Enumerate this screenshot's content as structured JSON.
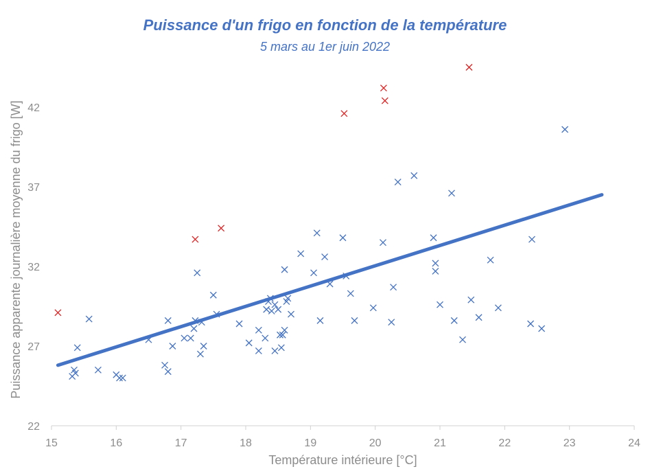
{
  "colors": {
    "accent": "#4472C4",
    "outlier": "#E02020",
    "axis_text": "#8C8C8C",
    "axis_line": "#D0D0D0",
    "trend": "#4472C4"
  },
  "chart_data": {
    "type": "scatter",
    "title": "Puissance d'un frigo en fonction de la température",
    "subtitle": "5 mars au 1er juin 2022",
    "xlabel": "Température intérieure [°C]",
    "ylabel": "Puissance apparente journalière moyenne du frigo [W]",
    "xlim": [
      15,
      24
    ],
    "ylim": [
      22,
      45
    ],
    "xticks": [
      "15",
      "16",
      "17",
      "18",
      "19",
      "20",
      "21",
      "22",
      "23",
      "24"
    ],
    "yticks": [
      "22",
      "27",
      "32",
      "37",
      "42"
    ],
    "grid": false,
    "trendline": {
      "x": [
        15.1,
        23.5
      ],
      "y": [
        25.8,
        36.5
      ]
    },
    "series": [
      {
        "marker": "x",
        "color": "#4472C4",
        "points": [
          [
            15.32,
            25.1
          ],
          [
            15.35,
            25.5
          ],
          [
            15.37,
            25.3
          ],
          [
            15.4,
            26.9
          ],
          [
            15.58,
            28.7
          ],
          [
            15.72,
            25.5
          ],
          [
            16.0,
            25.2
          ],
          [
            16.05,
            25.0
          ],
          [
            16.1,
            25.0
          ],
          [
            16.5,
            27.4
          ],
          [
            16.75,
            25.8
          ],
          [
            16.8,
            25.4
          ],
          [
            16.8,
            28.6
          ],
          [
            16.87,
            27.0
          ],
          [
            17.05,
            27.5
          ],
          [
            17.15,
            27.5
          ],
          [
            17.2,
            28.1
          ],
          [
            17.22,
            28.6
          ],
          [
            17.25,
            31.6
          ],
          [
            17.3,
            26.5
          ],
          [
            17.32,
            28.5
          ],
          [
            17.35,
            27.0
          ],
          [
            17.5,
            30.2
          ],
          [
            17.55,
            29.0
          ],
          [
            17.9,
            28.4
          ],
          [
            18.05,
            27.2
          ],
          [
            18.2,
            28.0
          ],
          [
            18.2,
            26.7
          ],
          [
            18.3,
            27.5
          ],
          [
            18.32,
            29.3
          ],
          [
            18.35,
            29.8
          ],
          [
            18.38,
            30.0
          ],
          [
            18.4,
            29.2
          ],
          [
            18.45,
            29.6
          ],
          [
            18.45,
            26.7
          ],
          [
            18.5,
            29.3
          ],
          [
            18.53,
            27.7
          ],
          [
            18.55,
            26.9
          ],
          [
            18.57,
            27.7
          ],
          [
            18.6,
            28.0
          ],
          [
            18.6,
            31.8
          ],
          [
            18.63,
            29.8
          ],
          [
            18.65,
            30.0
          ],
          [
            18.7,
            29.0
          ],
          [
            18.85,
            32.8
          ],
          [
            19.05,
            31.6
          ],
          [
            19.1,
            34.1
          ],
          [
            19.15,
            28.6
          ],
          [
            19.22,
            32.6
          ],
          [
            19.3,
            30.9
          ],
          [
            19.5,
            33.8
          ],
          [
            19.55,
            31.4
          ],
          [
            19.62,
            30.3
          ],
          [
            19.68,
            28.6
          ],
          [
            19.97,
            29.4
          ],
          [
            20.12,
            33.5
          ],
          [
            20.25,
            28.5
          ],
          [
            20.28,
            30.7
          ],
          [
            20.35,
            37.3
          ],
          [
            20.6,
            37.7
          ],
          [
            20.9,
            33.8
          ],
          [
            20.93,
            32.2
          ],
          [
            20.93,
            31.7
          ],
          [
            21.0,
            29.6
          ],
          [
            21.18,
            36.6
          ],
          [
            21.22,
            28.6
          ],
          [
            21.35,
            27.4
          ],
          [
            21.48,
            29.9
          ],
          [
            21.6,
            28.8
          ],
          [
            21.78,
            32.4
          ],
          [
            21.9,
            29.4
          ],
          [
            22.4,
            28.4
          ],
          [
            22.42,
            33.7
          ],
          [
            22.57,
            28.1
          ],
          [
            22.93,
            40.6
          ]
        ]
      },
      {
        "marker": "x",
        "color": "#E02020",
        "points": [
          [
            15.1,
            29.1
          ],
          [
            17.22,
            33.7
          ],
          [
            17.62,
            34.4
          ],
          [
            19.52,
            41.6
          ],
          [
            20.13,
            43.2
          ],
          [
            20.15,
            42.4
          ],
          [
            21.45,
            44.5
          ]
        ]
      }
    ]
  }
}
